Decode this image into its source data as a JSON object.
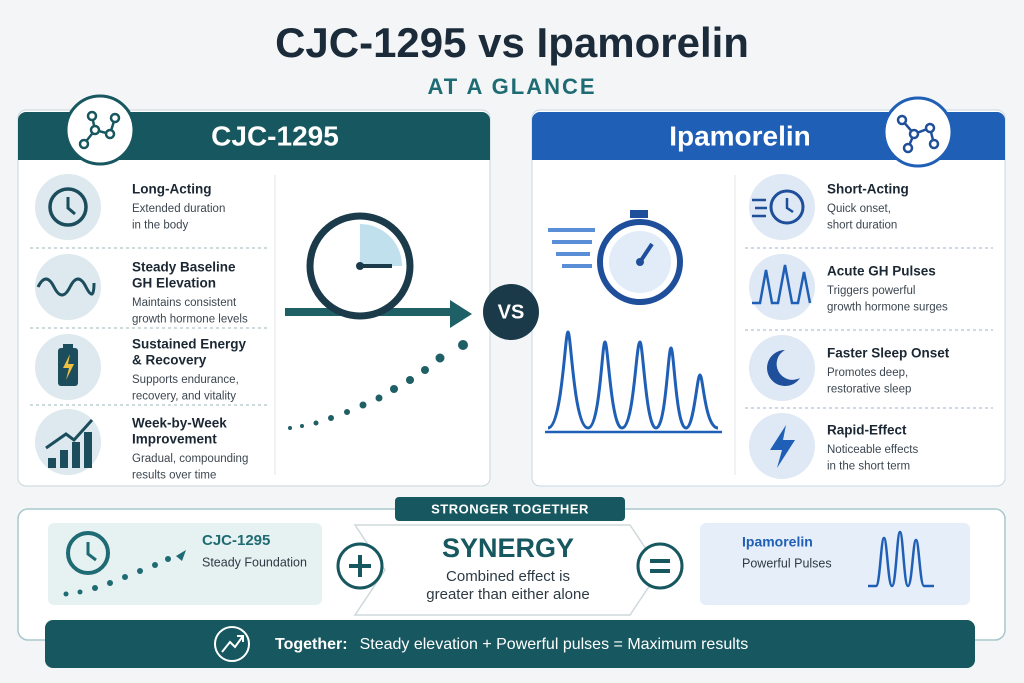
{
  "header": {
    "title": "CJC-1295 vs Ipamorelin",
    "subtitle": "AT A GLANCE"
  },
  "panels": [
    {
      "title": "CJC-1295",
      "items": [
        {
          "title": [
            "Long-Acting"
          ],
          "description": [
            "Extended duration",
            "in the body"
          ]
        },
        {
          "title": [
            "Steady Baseline",
            "GH Elevation"
          ],
          "description": [
            "Maintains consistent",
            "growth hormone levels"
          ]
        },
        {
          "title": [
            "Sustained Energy",
            "& Recovery"
          ],
          "description": [
            "Supports endurance,",
            "recovery, and vitality"
          ]
        },
        {
          "title": [
            "Week-by-Week",
            "Improvement"
          ],
          "description": [
            "Gradual, compounding",
            "results over time"
          ]
        }
      ]
    },
    {
      "title": "Ipamorelin",
      "items": [
        {
          "title": [
            "Short-Acting"
          ],
          "description": [
            "Quick onset,",
            "short duration"
          ]
        },
        {
          "title": [
            "Acute GH Pulses"
          ],
          "description": [
            "Triggers powerful",
            "growth hormone surges"
          ]
        },
        {
          "title": [
            "Faster Sleep Onset"
          ],
          "description": [
            "Promotes deep,",
            "restorative sleep"
          ]
        },
        {
          "title": [
            "Rapid-Effect"
          ],
          "description": [
            "Noticeable effects",
            "in the short term"
          ]
        }
      ]
    }
  ],
  "vs": "VS",
  "synergy": {
    "badge": "STRONGER TOGETHER",
    "left": {
      "title": "CJC-1295",
      "subtitle": "Steady Foundation"
    },
    "center": {
      "title": "SYNERGY",
      "lines": [
        "Combined effect is",
        "greater than either alone"
      ]
    },
    "right": {
      "title": "Ipamorelin",
      "subtitle": "Powerful Pulses"
    }
  },
  "footer": {
    "label": "Together:",
    "text": "Steady elevation + Powerful pulses = Maximum results"
  }
}
